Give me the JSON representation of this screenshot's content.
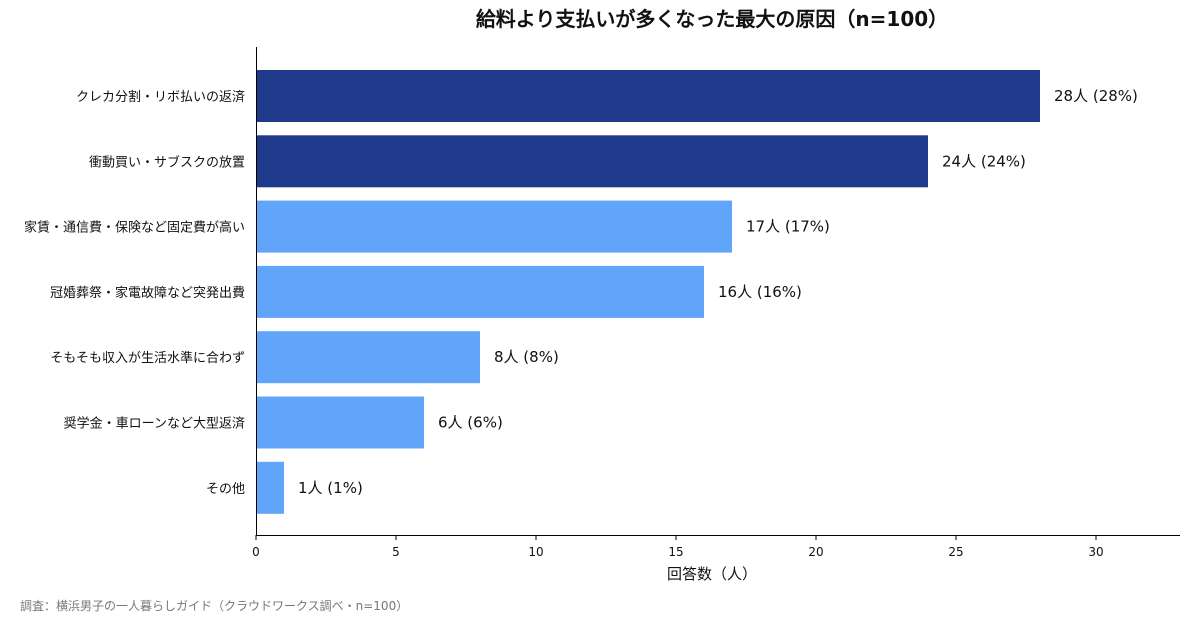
{
  "chart_data": {
    "type": "bar",
    "orientation": "horizontal",
    "title": "給料より支払いが多くなった最大の原因（n=100）",
    "xlabel": "回答数（人）",
    "ylabel": "",
    "xlim": [
      0,
      33
    ],
    "xticks": [
      0,
      5,
      10,
      15,
      20,
      25,
      30
    ],
    "grid": false,
    "categories": [
      "クレカ分割・リボ払いの返済",
      "衝動買い・サブスクの放置",
      "家賃・通信費・保険など固定費が高い",
      "冠婚葬祭・家電故障など突発出費",
      "そもそも収入が生活水準に合わず",
      "奨学金・車ローンなど大型返済",
      "その他"
    ],
    "values": [
      28,
      24,
      17,
      16,
      8,
      6,
      1
    ],
    "data_labels": [
      "28人 (28%)",
      "24人 (24%)",
      "17人 (17%)",
      "16人 (16%)",
      "8人 (8%)",
      "6人 (6%)",
      "1人 (1%)"
    ],
    "bar_colors": [
      "#1f3a8a",
      "#1f3a8a",
      "#60a5fa",
      "#60a5fa",
      "#60a5fa",
      "#60a5fa",
      "#60a5fa"
    ]
  },
  "source_note": "調査：横浜男子の一人暮らしガイド（クラウドワークス調べ・n=100）"
}
